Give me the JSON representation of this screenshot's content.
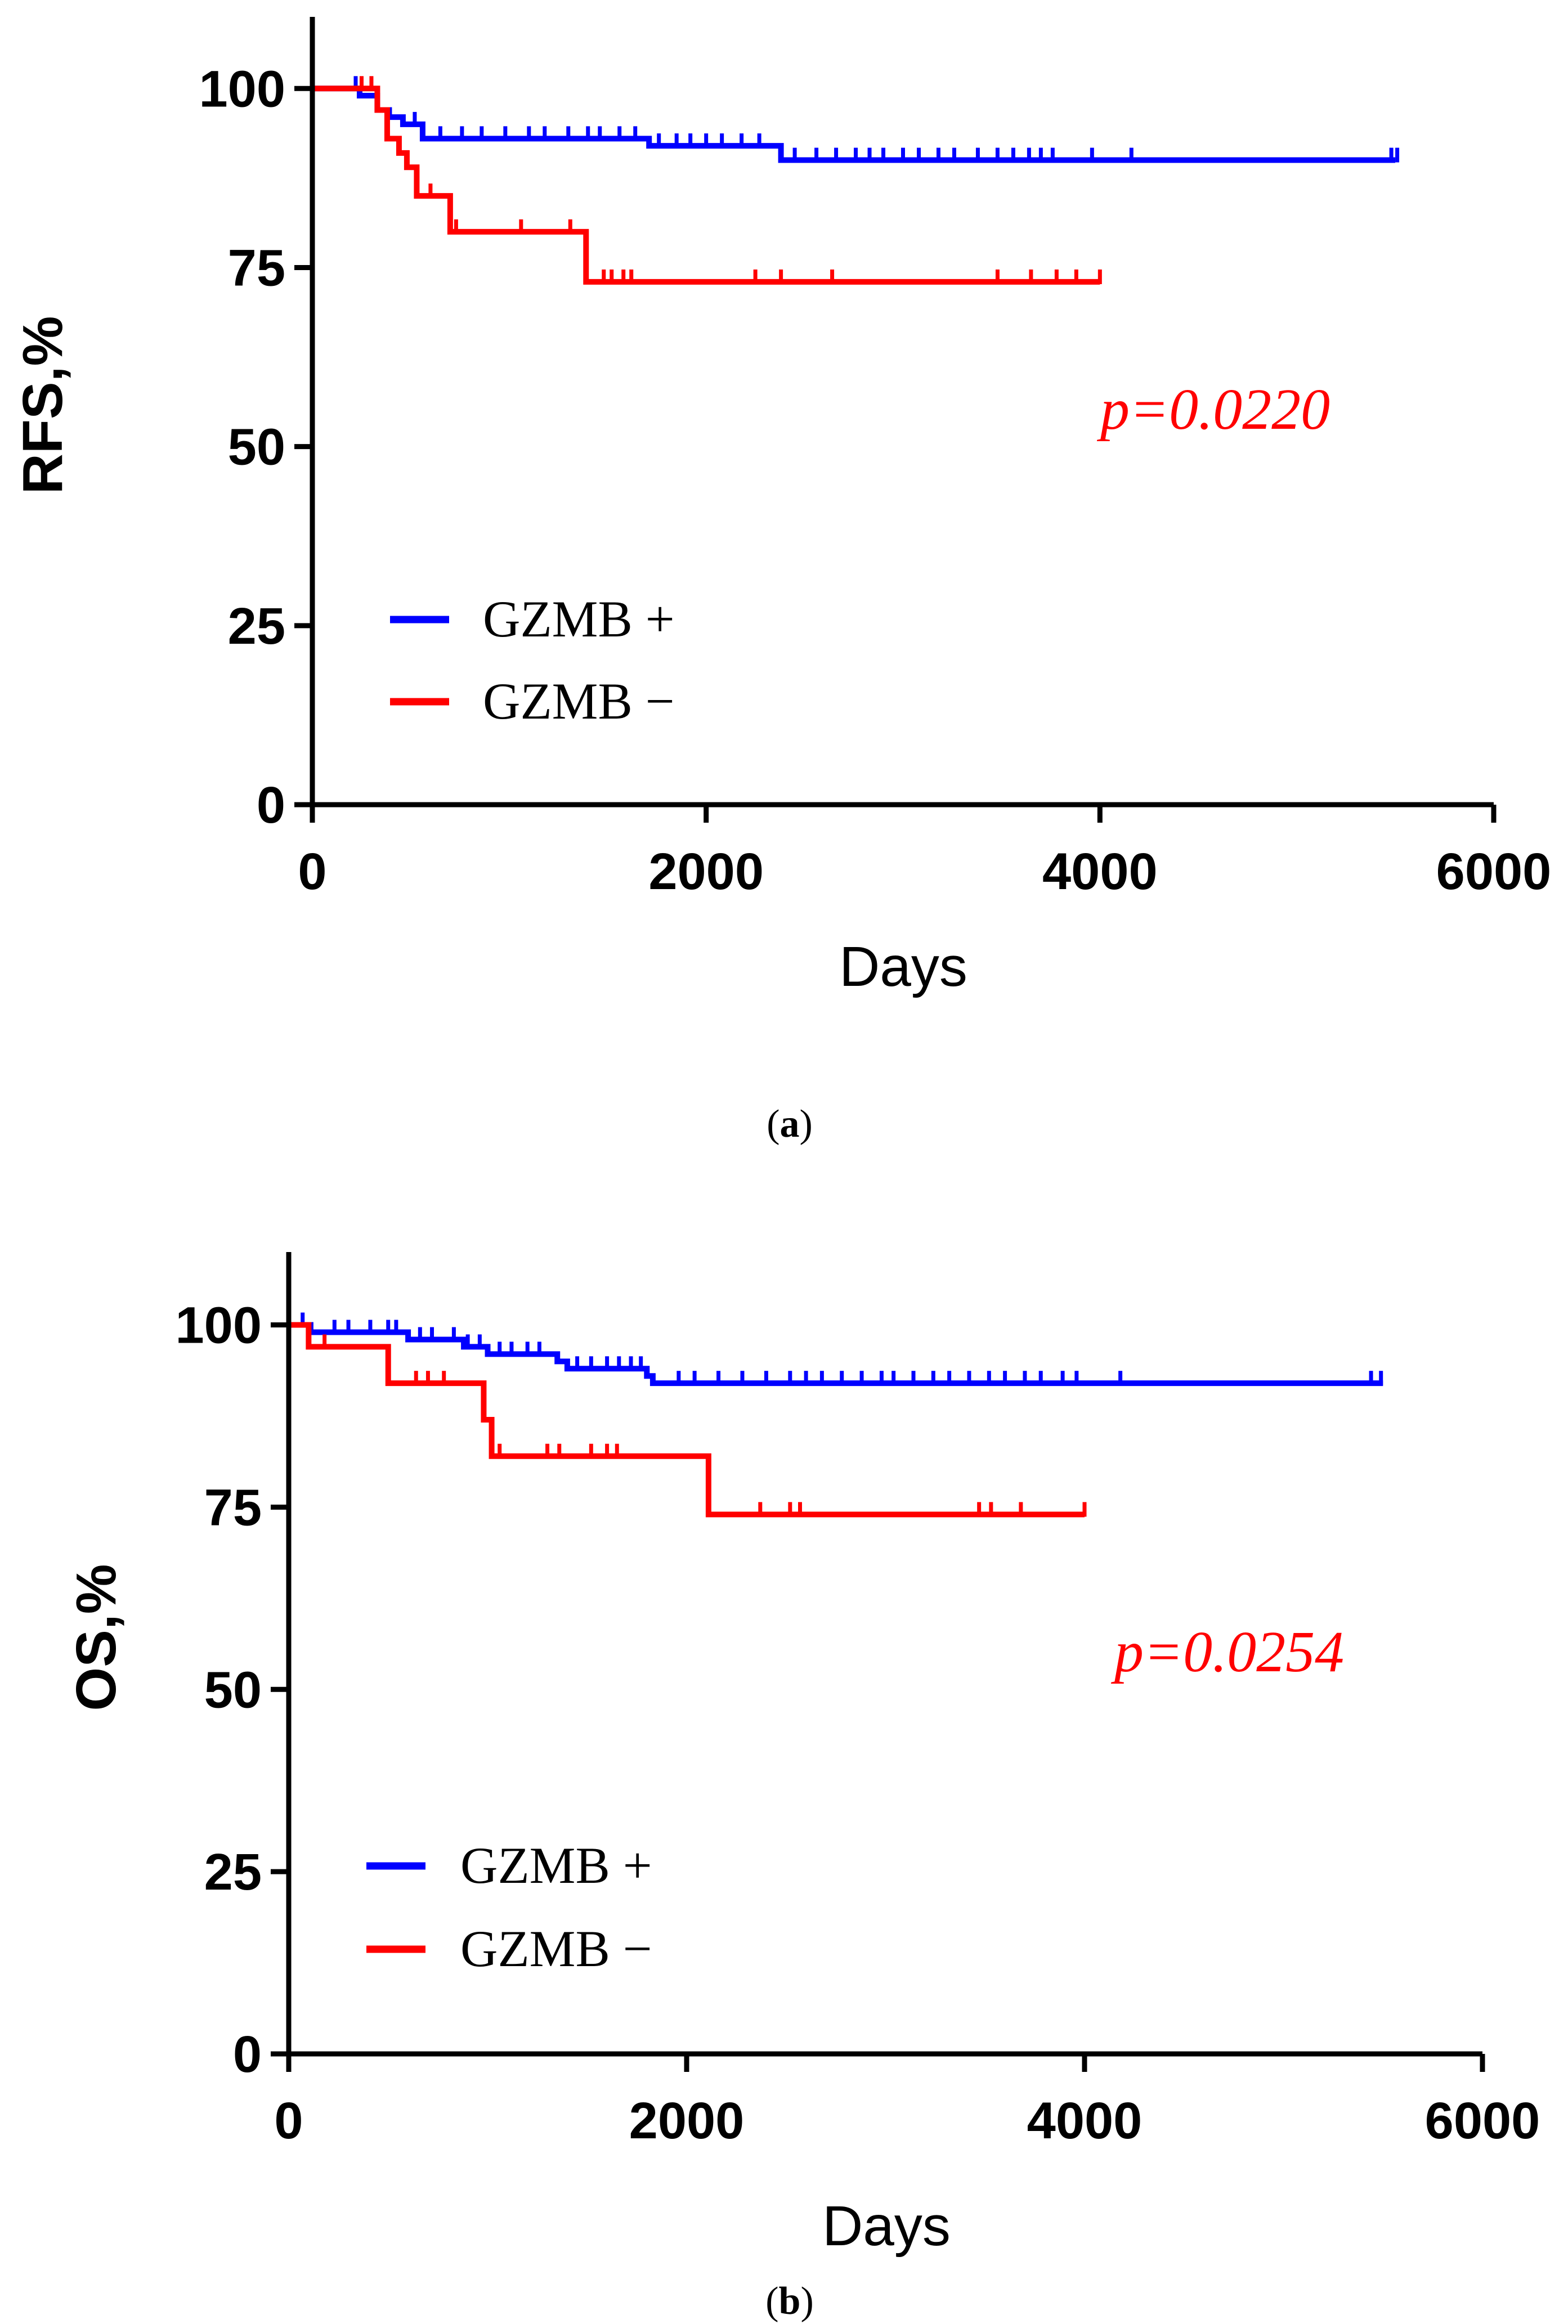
{
  "chart_data": [
    {
      "type": "line",
      "subtype": "kaplan-meier",
      "panel": "a",
      "panel_label": "a",
      "xlabel": "Days",
      "ylabel": "RFS,%",
      "xlim": [
        0,
        6000
      ],
      "ylim": [
        0,
        110
      ],
      "xticks": [
        0,
        2000,
        4000,
        6000
      ],
      "yticks": [
        0,
        25,
        50,
        75,
        100
      ],
      "grid": false,
      "legend_position": "lower-left",
      "p_value": "p=0.0220",
      "series": [
        {
          "name": "GZMB +",
          "color": "#0000ff",
          "steps": [
            [
              0,
              100
            ],
            [
              240,
              99
            ],
            [
              330,
              97
            ],
            [
              390,
              96
            ],
            [
              460,
              95
            ],
            [
              560,
              93
            ],
            [
              1700,
              93
            ],
            [
              1710,
              92
            ],
            [
              2350,
              92
            ],
            [
              2380,
              90
            ],
            [
              5500,
              90
            ]
          ],
          "censored": [
            220,
            520,
            650,
            760,
            860,
            980,
            1100,
            1180,
            1300,
            1400,
            1460,
            1560,
            1640,
            1760,
            1850,
            1920,
            2000,
            2080,
            2180,
            2270,
            2450,
            2560,
            2660,
            2760,
            2830,
            2900,
            3000,
            3080,
            3180,
            3260,
            3380,
            3480,
            3560,
            3640,
            3700,
            3760,
            3960,
            4160,
            5480,
            5510
          ]
        },
        {
          "name": "GZMB −",
          "color": "#ff0000",
          "steps": [
            [
              0,
              100
            ],
            [
              330,
              97
            ],
            [
              380,
              93
            ],
            [
              440,
              91
            ],
            [
              480,
              89
            ],
            [
              530,
              85
            ],
            [
              700,
              80
            ],
            [
              1370,
              80
            ],
            [
              1390,
              73
            ],
            [
              4000,
              73
            ]
          ],
          "censored": [
            250,
            300,
            600,
            730,
            1060,
            1310,
            1480,
            1520,
            1580,
            1620,
            2250,
            2380,
            2640,
            3480,
            3650,
            3780,
            3880,
            4000
          ]
        }
      ]
    },
    {
      "type": "line",
      "subtype": "kaplan-meier",
      "panel": "b",
      "panel_label": "b",
      "xlabel": "Days",
      "ylabel": "OS,%",
      "xlim": [
        0,
        6000
      ],
      "ylim": [
        0,
        110
      ],
      "xticks": [
        0,
        2000,
        4000,
        6000
      ],
      "yticks": [
        0,
        25,
        50,
        75,
        100
      ],
      "grid": false,
      "legend_position": "lower-left",
      "p_value": "p=0.0254",
      "series": [
        {
          "name": "GZMB +",
          "color": "#0000ff",
          "steps": [
            [
              0,
              100
            ],
            [
              110,
              99
            ],
            [
              600,
              98
            ],
            [
              880,
              97
            ],
            [
              1000,
              96
            ],
            [
              1350,
              95
            ],
            [
              1400,
              94
            ],
            [
              1800,
              93
            ],
            [
              1830,
              92
            ],
            [
              5500,
              92
            ]
          ],
          "censored": [
            70,
            230,
            300,
            410,
            500,
            540,
            660,
            720,
            830,
            900,
            960,
            1060,
            1120,
            1200,
            1260,
            1450,
            1520,
            1600,
            1660,
            1720,
            1770,
            1960,
            2040,
            2160,
            2280,
            2400,
            2520,
            2600,
            2680,
            2780,
            2880,
            2980,
            3040,
            3140,
            3240,
            3320,
            3420,
            3520,
            3600,
            3700,
            3780,
            3890,
            3960,
            4180,
            5440,
            5490
          ]
        },
        {
          "name": "GZMB −",
          "color": "#ff0000",
          "steps": [
            [
              0,
              100
            ],
            [
              100,
              97
            ],
            [
              500,
              92
            ],
            [
              980,
              87
            ],
            [
              1020,
              82
            ],
            [
              2090,
              82
            ],
            [
              2110,
              74
            ],
            [
              4000,
              74
            ]
          ],
          "censored": [
            180,
            640,
            700,
            780,
            1060,
            1300,
            1360,
            1520,
            1600,
            1650,
            2370,
            2520,
            2570,
            3470,
            3530,
            3680,
            4000
          ]
        }
      ]
    }
  ]
}
